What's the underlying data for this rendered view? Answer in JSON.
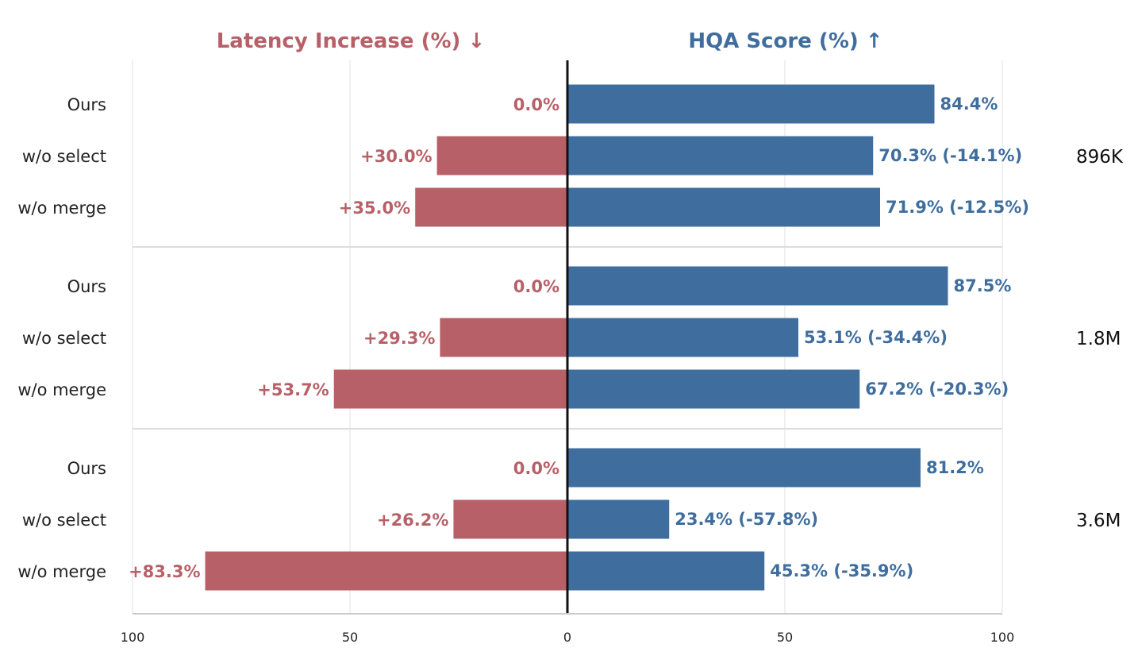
{
  "chart_data": {
    "type": "bar",
    "left_panel": {
      "title": "Latency Increase (%) ↓",
      "color": "#b86068"
    },
    "right_panel": {
      "title": "HQA Score (%) ↑",
      "color": "#3f6e9e"
    },
    "axis": {
      "left_ticks": [
        "100",
        "50",
        "0"
      ],
      "right_ticks": [
        "0",
        "50",
        "100"
      ],
      "range": [
        0,
        100
      ]
    },
    "groups": [
      {
        "label": "896K",
        "rows": [
          {
            "category": "Ours",
            "latency": 0.0,
            "latency_label": "0.0%",
            "score": 84.4,
            "score_label": "84.4%"
          },
          {
            "category": "w/o select",
            "latency": 30.0,
            "latency_label": "+30.0%",
            "score": 70.3,
            "score_label": "70.3% (-14.1%)"
          },
          {
            "category": "w/o merge",
            "latency": 35.0,
            "latency_label": "+35.0%",
            "score": 71.9,
            "score_label": "71.9% (-12.5%)"
          }
        ]
      },
      {
        "label": "1.8M",
        "rows": [
          {
            "category": "Ours",
            "latency": 0.0,
            "latency_label": "0.0%",
            "score": 87.5,
            "score_label": "87.5%"
          },
          {
            "category": "w/o select",
            "latency": 29.3,
            "latency_label": "+29.3%",
            "score": 53.1,
            "score_label": "53.1% (-34.4%)"
          },
          {
            "category": "w/o merge",
            "latency": 53.7,
            "latency_label": "+53.7%",
            "score": 67.2,
            "score_label": "67.2% (-20.3%)"
          }
        ]
      },
      {
        "label": "3.6M",
        "rows": [
          {
            "category": "Ours",
            "latency": 0.0,
            "latency_label": "0.0%",
            "score": 81.2,
            "score_label": "81.2%"
          },
          {
            "category": "w/o select",
            "latency": 26.2,
            "latency_label": "+26.2%",
            "score": 23.4,
            "score_label": "23.4% (-57.8%)"
          },
          {
            "category": "w/o merge",
            "latency": 83.3,
            "latency_label": "+83.3%",
            "score": 45.3,
            "score_label": "45.3% (-35.9%)"
          }
        ]
      }
    ]
  }
}
